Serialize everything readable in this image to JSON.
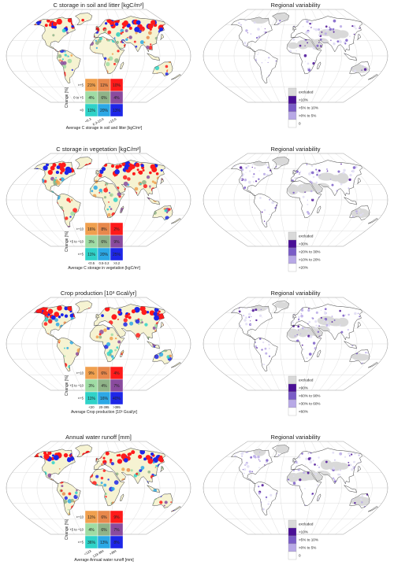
{
  "colors": {
    "land_base": "#f6f3d2",
    "graticule": "#c8c8c8",
    "excluded": "#d9d9d9",
    "matrix": [
      [
        "#f0a04f",
        "#e8884c",
        "#ff1a1a"
      ],
      [
        "#9fdca4",
        "#8fb388",
        "#8a4b9e"
      ],
      [
        "#2fd2c8",
        "#2ca8e6",
        "#1d26e8"
      ]
    ],
    "variability": [
      "#ffffff",
      "#dfdcf3",
      "#b8a9e6",
      "#7a5cc7",
      "#4a0f96"
    ]
  },
  "panels": [
    {
      "title": "C storage in soil and litter [kgC/m²]",
      "ylabel": "Change [%]",
      "xlabel": "Average C storage in soil and litter [kgC/m²]",
      "rows": [
        ">+5",
        "0 to +5",
        "<0"
      ],
      "cols": [
        "<6.3",
        "6.3-15.6",
        ">15.6"
      ],
      "ticks_rotated": true,
      "cells": [
        [
          "21%",
          "11%",
          "10%"
        ],
        [
          "4%",
          "6%",
          "4%"
        ],
        [
          "11%",
          "20%",
          "13%"
        ]
      ]
    },
    {
      "title": "C storage in vegetation [kgC/m²]",
      "ylabel": "Change [%]",
      "xlabel": "Average C storage in vegetation [kgC/m²]",
      "rows": [
        ">+10",
        "+5 to +10",
        "<+5"
      ],
      "cols": [
        "<0.5",
        "0.5-3.2",
        ">3.2"
      ],
      "ticks_rotated": false,
      "cells": [
        [
          "16%",
          "8%",
          "2%"
        ],
        [
          "3%",
          "6%",
          "9%"
        ],
        [
          "11%",
          "20%",
          "25%"
        ]
      ]
    },
    {
      "title": "Crop production [10³ Gcal/yr]",
      "ylabel": "Change [%]",
      "xlabel": "Average Crop production [10³ Gcal/yr]",
      "rows": [
        ">+10",
        "+5 to +10",
        "<+5"
      ],
      "cols": [
        "<20",
        "20-395",
        ">395"
      ],
      "ticks_rotated": false,
      "cells": [
        [
          "9%",
          "6%",
          "4%"
        ],
        [
          "3%",
          "4%",
          "7%"
        ],
        [
          "11%",
          "16%",
          "40%"
        ]
      ]
    },
    {
      "title": "Annual water runoff [mm]",
      "ylabel": "Change [%]",
      "xlabel": "Average Annual water runoff [mm]",
      "rows": [
        ">+10",
        "+5 to +10",
        "<+5"
      ],
      "cols": [
        "<123",
        "123-394",
        ">394"
      ],
      "ticks_rotated": true,
      "cells": [
        [
          "11%",
          "6%",
          "9%"
        ],
        [
          "4%",
          "6%",
          "7%"
        ],
        [
          "36%",
          "13%",
          "8%"
        ]
      ]
    }
  ],
  "variability_panels": [
    {
      "title": "Regional variability",
      "legend": [
        "excluded",
        ">10%",
        ">5% to 10%",
        ">0% to 5%",
        "0"
      ]
    },
    {
      "title": "Regional variability",
      "legend": [
        "excluded",
        ">30%",
        ">20% to 30%",
        ">10% to 20%",
        "<20%"
      ]
    },
    {
      "title": "Regional variability",
      "legend": [
        "excluded",
        ">90%",
        ">60% to 90%",
        ">30% to 60%",
        "<60%"
      ]
    },
    {
      "title": "Regional variability",
      "legend": [
        "excluded",
        ">10%",
        ">5% to 10%",
        ">0% to 5%",
        "0"
      ]
    }
  ]
}
